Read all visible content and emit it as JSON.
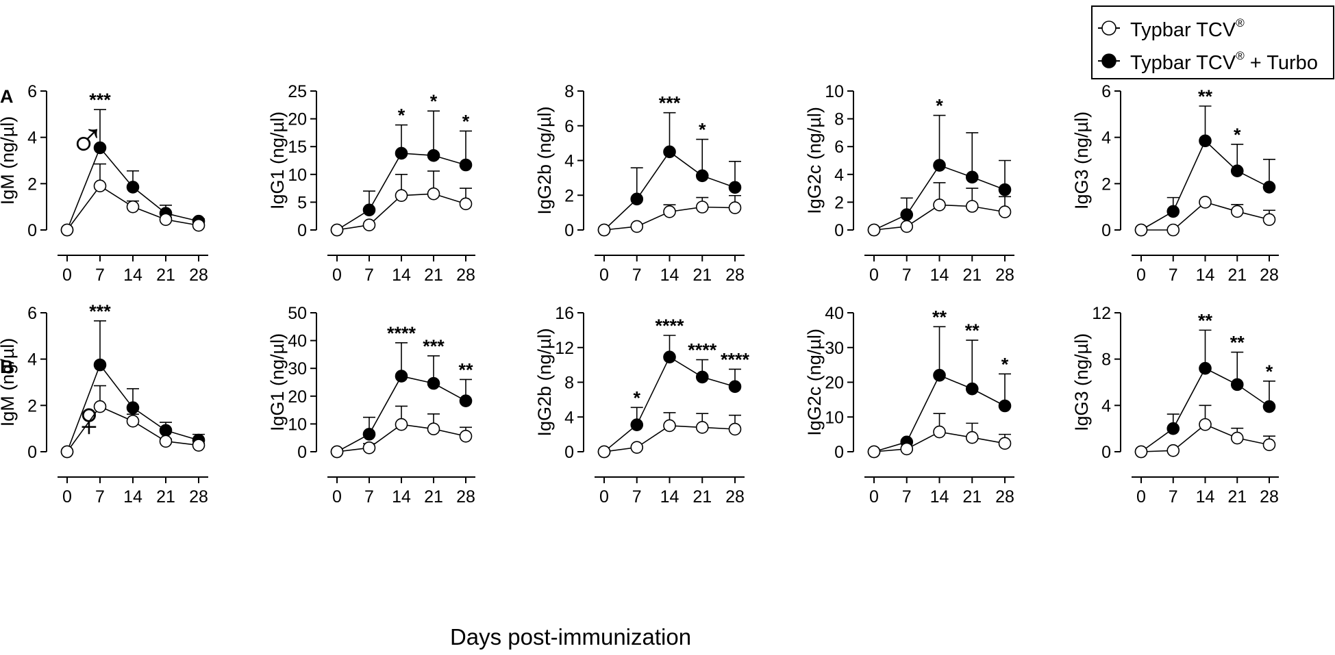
{
  "figure": {
    "xlabel": "Days post-immunization",
    "legend": {
      "series": [
        {
          "name": "Typbar TCV",
          "superscript": "®",
          "suffix": "",
          "marker": "open"
        },
        {
          "name": "Typbar TCV",
          "superscript": "®",
          "suffix": " + Turbo",
          "marker": "filled"
        }
      ]
    },
    "rows": [
      {
        "panel": "A",
        "sex_symbol": "♂"
      },
      {
        "panel": "B",
        "sex_symbol": "♀"
      }
    ]
  },
  "chart_data": [
    {
      "type": "line",
      "row": 0,
      "col": 0,
      "ylabel": "IgM (ng/µl)",
      "x": [
        0,
        7,
        14,
        21,
        28
      ],
      "xticks": [
        0,
        7,
        14,
        21,
        28
      ],
      "yticks": [
        0,
        2,
        4,
        6
      ],
      "ylim": [
        0,
        6
      ],
      "sex_symbol": "♂",
      "series": [
        {
          "name": "Typbar TCV®",
          "values": [
            0,
            1.9,
            1.0,
            0.45,
            0.2
          ],
          "err": [
            0,
            0.95,
            0.25,
            0.1,
            0.05
          ]
        },
        {
          "name": "Typbar TCV® + Turbo",
          "values": [
            0,
            3.55,
            1.85,
            0.72,
            0.38
          ],
          "err": [
            0,
            1.65,
            0.7,
            0.35,
            0.1
          ]
        }
      ],
      "sig": [
        "",
        "***",
        "",
        "",
        ""
      ]
    },
    {
      "type": "line",
      "row": 0,
      "col": 1,
      "ylabel": "IgG1 (ng/µl)",
      "x": [
        0,
        7,
        14,
        21,
        28
      ],
      "xticks": [
        0,
        7,
        14,
        21,
        28
      ],
      "yticks": [
        0,
        5,
        10,
        15,
        20,
        25
      ],
      "ylim": [
        0,
        25
      ],
      "series": [
        {
          "name": "Typbar TCV®",
          "values": [
            0,
            0.9,
            6.2,
            6.5,
            4.7
          ],
          "err": [
            0,
            0,
            3.8,
            4.1,
            2.8
          ]
        },
        {
          "name": "Typbar TCV® + Turbo",
          "values": [
            0,
            3.6,
            13.8,
            13.4,
            11.7
          ],
          "err": [
            0,
            3.4,
            5.1,
            8.0,
            6.1
          ]
        }
      ],
      "sig": [
        "",
        "",
        "*",
        "*",
        "*"
      ]
    },
    {
      "type": "line",
      "row": 0,
      "col": 2,
      "ylabel": "IgG2b (ng/µl)",
      "x": [
        0,
        7,
        14,
        21,
        28
      ],
      "xticks": [
        0,
        7,
        14,
        21,
        28
      ],
      "yticks": [
        0,
        2,
        4,
        6,
        8
      ],
      "ylim": [
        0,
        8
      ],
      "series": [
        {
          "name": "Typbar TCV®",
          "values": [
            0,
            0.2,
            1.05,
            1.32,
            1.28
          ],
          "err": [
            0,
            0,
            0.4,
            0.55,
            0.7
          ]
        },
        {
          "name": "Typbar TCV® + Turbo",
          "values": [
            0,
            1.78,
            4.5,
            3.12,
            2.45
          ],
          "err": [
            0,
            1.8,
            2.25,
            2.1,
            1.5
          ]
        }
      ],
      "sig": [
        "",
        "",
        "***",
        "*",
        ""
      ]
    },
    {
      "type": "line",
      "row": 0,
      "col": 3,
      "ylabel": "IgG2c (ng/µl)",
      "x": [
        0,
        7,
        14,
        21,
        28
      ],
      "xticks": [
        0,
        7,
        14,
        21,
        28
      ],
      "yticks": [
        0,
        2,
        4,
        6,
        8,
        10
      ],
      "ylim": [
        0,
        10
      ],
      "series": [
        {
          "name": "Typbar TCV®",
          "values": [
            0,
            0.25,
            1.8,
            1.7,
            1.3
          ],
          "err": [
            0,
            0,
            1.6,
            1.3,
            1.1
          ]
        },
        {
          "name": "Typbar TCV® + Turbo",
          "values": [
            0,
            1.1,
            4.65,
            3.8,
            2.9
          ],
          "err": [
            0,
            1.2,
            3.6,
            3.2,
            2.1
          ]
        }
      ],
      "sig": [
        "",
        "",
        "*",
        "",
        ""
      ]
    },
    {
      "type": "line",
      "row": 0,
      "col": 4,
      "ylabel": "IgG3 (ng/µl)",
      "x": [
        0,
        7,
        14,
        21,
        28
      ],
      "xticks": [
        0,
        7,
        14,
        21,
        28
      ],
      "yticks": [
        0,
        2,
        4,
        6
      ],
      "ylim": [
        0,
        6
      ],
      "series": [
        {
          "name": "Typbar TCV®",
          "values": [
            0,
            0,
            1.2,
            0.8,
            0.45
          ],
          "err": [
            0,
            0,
            0,
            0.3,
            0.4
          ]
        },
        {
          "name": "Typbar TCV® + Turbo",
          "values": [
            0,
            0.8,
            3.85,
            2.55,
            1.85
          ],
          "err": [
            0,
            0.6,
            1.5,
            1.15,
            1.2
          ]
        }
      ],
      "sig": [
        "",
        "",
        "**",
        "*",
        ""
      ]
    },
    {
      "type": "line",
      "row": 1,
      "col": 0,
      "ylabel": "IgM (ng/µl)",
      "x": [
        0,
        7,
        14,
        21,
        28
      ],
      "xticks": [
        0,
        7,
        14,
        21,
        28
      ],
      "yticks": [
        0,
        2,
        4,
        6
      ],
      "ylim": [
        0,
        6
      ],
      "sex_symbol": "♀",
      "series": [
        {
          "name": "Typbar TCV®",
          "values": [
            0,
            1.95,
            1.32,
            0.45,
            0.28
          ],
          "err": [
            0,
            0.9,
            0.3,
            0.1,
            0.08
          ]
        },
        {
          "name": "Typbar TCV® + Turbo",
          "values": [
            0,
            3.75,
            1.9,
            0.92,
            0.5
          ],
          "err": [
            0,
            1.9,
            0.82,
            0.35,
            0.25
          ]
        }
      ],
      "sig": [
        "",
        "***",
        "",
        "",
        ""
      ]
    },
    {
      "type": "line",
      "row": 1,
      "col": 1,
      "ylabel": "IgG1 (ng/µl)",
      "x": [
        0,
        7,
        14,
        21,
        28
      ],
      "xticks": [
        0,
        7,
        14,
        21,
        28
      ],
      "yticks": [
        0,
        10,
        20,
        30,
        40,
        50
      ],
      "ylim": [
        0,
        50
      ],
      "series": [
        {
          "name": "Typbar TCV®",
          "values": [
            0,
            1.4,
            9.8,
            8.2,
            5.6
          ],
          "err": [
            0,
            1.5,
            6.6,
            5.4,
            3.2
          ]
        },
        {
          "name": "Typbar TCV® + Turbo",
          "values": [
            0,
            6.3,
            27.2,
            24.6,
            18.3
          ],
          "err": [
            0,
            6.1,
            12.0,
            9.9,
            7.7
          ]
        }
      ],
      "sig": [
        "",
        "",
        "****",
        "***",
        "**"
      ]
    },
    {
      "type": "line",
      "row": 1,
      "col": 2,
      "ylabel": "IgG2b (ng/µl)",
      "x": [
        0,
        7,
        14,
        21,
        28
      ],
      "xticks": [
        0,
        7,
        14,
        21,
        28
      ],
      "yticks": [
        0,
        4,
        8,
        12,
        16
      ],
      "ylim": [
        0,
        16
      ],
      "series": [
        {
          "name": "Typbar TCV®",
          "values": [
            0,
            0.5,
            3.0,
            2.8,
            2.6
          ],
          "err": [
            0,
            0,
            1.5,
            1.6,
            1.6
          ]
        },
        {
          "name": "Typbar TCV® + Turbo",
          "values": [
            0,
            3.1,
            10.9,
            8.6,
            7.5
          ],
          "err": [
            0,
            2.0,
            2.5,
            2.0,
            2.0
          ]
        }
      ],
      "sig": [
        "",
        "*",
        "****",
        "****",
        "****"
      ]
    },
    {
      "type": "line",
      "row": 1,
      "col": 3,
      "ylabel": "IgG2c (ng/µl)",
      "x": [
        0,
        7,
        14,
        21,
        28
      ],
      "xticks": [
        0,
        7,
        14,
        21,
        28
      ],
      "yticks": [
        0,
        10,
        20,
        30,
        40
      ],
      "ylim": [
        0,
        40
      ],
      "series": [
        {
          "name": "Typbar TCV®",
          "values": [
            0,
            0.8,
            5.7,
            4.1,
            2.4
          ],
          "err": [
            0,
            0,
            5.3,
            4.1,
            2.6
          ]
        },
        {
          "name": "Typbar TCV® + Turbo",
          "values": [
            0,
            2.8,
            22.0,
            18.1,
            13.2
          ],
          "err": [
            0,
            0,
            14.0,
            14.0,
            9.2
          ]
        }
      ],
      "sig": [
        "",
        "",
        "**",
        "**",
        "*"
      ]
    },
    {
      "type": "line",
      "row": 1,
      "col": 4,
      "ylabel": "IgG3 (ng/µl)",
      "x": [
        0,
        7,
        14,
        21,
        28
      ],
      "xticks": [
        0,
        7,
        14,
        21,
        28
      ],
      "yticks": [
        0,
        4,
        8,
        12
      ],
      "ylim": [
        0,
        12
      ],
      "series": [
        {
          "name": "Typbar TCV®",
          "values": [
            0,
            0.1,
            2.35,
            1.18,
            0.6
          ],
          "err": [
            0,
            0,
            1.65,
            0.85,
            0.75
          ]
        },
        {
          "name": "Typbar TCV® + Turbo",
          "values": [
            0,
            2.0,
            7.2,
            5.8,
            3.9
          ],
          "err": [
            0,
            1.25,
            3.3,
            2.8,
            2.2
          ]
        }
      ],
      "sig": [
        "",
        "",
        "**",
        "**",
        "*"
      ]
    }
  ]
}
